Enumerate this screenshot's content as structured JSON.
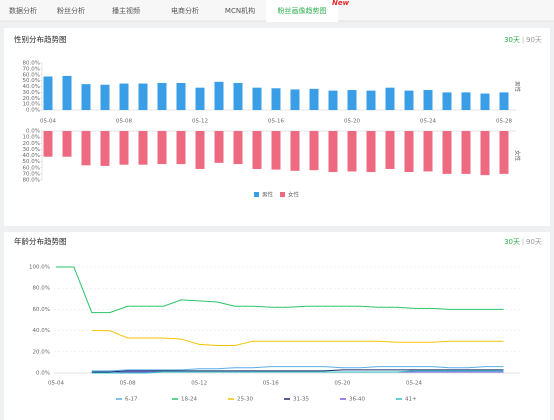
{
  "tabs": [
    "数据分析",
    "粉丝分析",
    "播主视频",
    "电商分析",
    "MCN机构",
    "粉丝画像趋势图"
  ],
  "tab_badge": "New",
  "chart_data": [
    {
      "type": "bar",
      "title": "性别分布趋势图",
      "range_options": [
        "30天",
        "90天"
      ],
      "categories": [
        "05-04",
        null,
        null,
        null,
        "05-08",
        null,
        null,
        null,
        "05-12",
        null,
        null,
        null,
        "05-16",
        null,
        null,
        null,
        "05-20",
        null,
        null,
        null,
        "05-24",
        null,
        null,
        null,
        "05-28"
      ],
      "series": [
        {
          "name": "男性",
          "color": "#3a9ee6",
          "values": [
            57,
            58,
            44,
            43,
            45,
            45,
            46,
            46,
            38,
            48,
            46,
            38,
            37,
            35,
            36,
            33,
            34,
            33,
            38,
            33,
            34,
            30,
            30,
            28,
            30
          ]
        },
        {
          "name": "女性",
          "color": "#ee6a80",
          "values": [
            42,
            42,
            56,
            57,
            55,
            55,
            54,
            54,
            62,
            52,
            54,
            62,
            63,
            65,
            64,
            67,
            66,
            67,
            62,
            67,
            66,
            70,
            70,
            72,
            70
          ]
        }
      ],
      "ylim": [
        0,
        80
      ],
      "yticks": [
        {
          "value": 0,
          "label": "0.0%"
        },
        {
          "value": 10,
          "label": "10.0%"
        },
        {
          "value": 20,
          "label": "20.0%"
        },
        {
          "value": 30,
          "label": "30.0%"
        },
        {
          "value": 40,
          "label": "40.0%"
        },
        {
          "value": 50,
          "label": "50.0%"
        },
        {
          "value": 60,
          "label": "60.0%"
        },
        {
          "value": 70,
          "label": "70.0%"
        },
        {
          "value": 80,
          "label": "80.0%"
        }
      ]
    },
    {
      "type": "line",
      "title": "年龄分布趋势图",
      "range_options": [
        "30天",
        "90天"
      ],
      "categories": [
        "05-04",
        null,
        null,
        null,
        "05-08",
        null,
        null,
        null,
        "05-12",
        null,
        null,
        null,
        "05-16",
        null,
        null,
        null,
        "05-20",
        null,
        null,
        null,
        "05-24",
        null,
        null,
        null,
        null,
        null
      ],
      "series": [
        {
          "name": "6-17",
          "color": "#5aaee8",
          "values": [
            null,
            null,
            2,
            2,
            3,
            3,
            3,
            3,
            4,
            4,
            5,
            5,
            6,
            6,
            6,
            6,
            5,
            5,
            6,
            6,
            6,
            6,
            5,
            5,
            6,
            6
          ]
        },
        {
          "name": "18-24",
          "color": "#2bc466",
          "values": [
            100,
            100,
            57,
            57,
            63,
            63,
            63,
            69,
            68,
            67,
            63,
            63,
            62,
            62,
            63,
            63,
            63,
            63,
            62,
            62,
            61,
            61,
            60,
            60,
            60,
            60
          ]
        },
        {
          "name": "25-30",
          "color": "#f5c400",
          "values": [
            null,
            null,
            40,
            40,
            33,
            33,
            33,
            32,
            27,
            26,
            26,
            30,
            30,
            30,
            30,
            30,
            30,
            30,
            30,
            29,
            29,
            29,
            30,
            30,
            30,
            30
          ]
        },
        {
          "name": "31-35",
          "color": "#1c2a6a",
          "values": [
            null,
            null,
            1,
            1,
            2,
            2,
            2,
            2,
            2,
            2,
            2,
            2,
            2,
            2,
            2,
            2,
            3,
            3,
            3,
            3,
            3,
            3,
            3,
            3,
            3,
            3
          ]
        },
        {
          "name": "36-40",
          "color": "#7b5be0",
          "values": [
            null,
            null,
            0,
            0,
            1,
            1,
            1,
            1,
            1,
            1,
            1,
            1,
            1,
            1,
            1,
            1,
            1,
            1,
            1,
            1,
            1,
            1,
            1,
            1,
            1,
            1
          ]
        },
        {
          "name": "41+",
          "color": "#2cc3c8",
          "values": [
            null,
            null,
            0,
            0,
            0,
            0,
            1,
            1,
            1,
            1,
            1,
            1,
            1,
            1,
            1,
            1,
            1,
            1,
            1,
            1,
            2,
            2,
            2,
            2,
            2,
            2
          ]
        }
      ],
      "ylim": [
        0,
        100
      ],
      "yticks": [
        {
          "value": 0,
          "label": "0.0%"
        },
        {
          "value": 20,
          "label": "20.0%"
        },
        {
          "value": 40,
          "label": "40.0%"
        },
        {
          "value": 60,
          "label": "60.0%"
        },
        {
          "value": 80,
          "label": "80.0%"
        },
        {
          "value": 100,
          "label": "100.0%"
        }
      ]
    }
  ]
}
